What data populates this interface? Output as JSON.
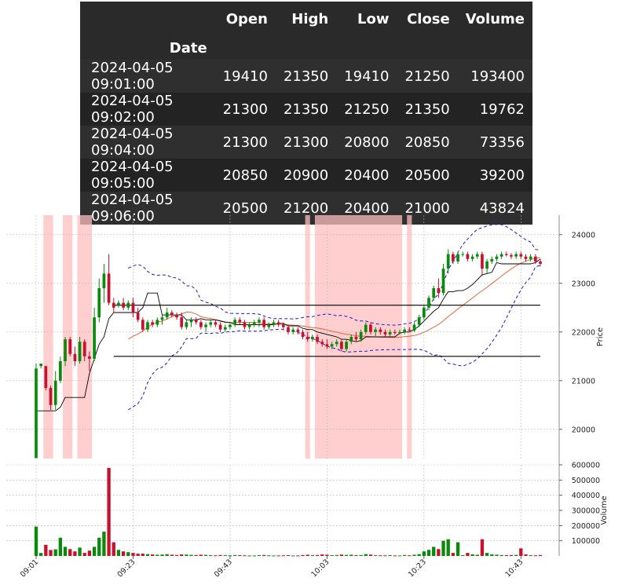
{
  "table": {
    "columns": [
      "Open",
      "High",
      "Low",
      "Close",
      "Volume"
    ],
    "index_name": "Date",
    "rows": [
      {
        "date": "2024-04-05 09:01:00",
        "open": "19410",
        "high": "21350",
        "low": "19410",
        "close": "21250",
        "volume": "193400"
      },
      {
        "date": "2024-04-05 09:02:00",
        "open": "21300",
        "high": "21350",
        "low": "21250",
        "close": "21350",
        "volume": "19762"
      },
      {
        "date": "2024-04-05 09:04:00",
        "open": "21300",
        "high": "21300",
        "low": "20800",
        "close": "20850",
        "volume": "73356"
      },
      {
        "date": "2024-04-05 09:05:00",
        "open": "20850",
        "high": "20900",
        "low": "20400",
        "close": "20500",
        "volume": "39200"
      },
      {
        "date": "2024-04-05 09:06:00",
        "open": "20500",
        "high": "21200",
        "low": "20400",
        "close": "21000",
        "volume": "43824"
      }
    ]
  },
  "chart_data": {
    "type": "candlestick",
    "price_axis": {
      "label": "Price",
      "ticks": [
        20000,
        21000,
        22000,
        23000,
        24000
      ],
      "ylim": [
        19400,
        24400
      ]
    },
    "volume_axis": {
      "label": "Volume",
      "ticks": [
        100000,
        200000,
        300000,
        400000,
        500000,
        600000
      ],
      "ylim": [
        0,
        600000
      ]
    },
    "x_ticks": [
      "09:01",
      "09:23",
      "09:43",
      "10:03",
      "10:23",
      "10:43"
    ],
    "x_tick_index": [
      0,
      20,
      40,
      60,
      80,
      100
    ],
    "grid": true,
    "horizontal_lines": [
      22550,
      21500
    ],
    "shaded_ranges": [
      [
        2,
        3
      ],
      [
        6,
        7
      ],
      [
        9,
        11
      ],
      [
        56,
        56
      ],
      [
        58,
        75
      ],
      [
        77,
        77
      ]
    ],
    "candles": [
      {
        "o": 19410,
        "h": 21350,
        "l": 19410,
        "c": 21250,
        "v": 193400
      },
      {
        "o": 21300,
        "h": 21350,
        "l": 21250,
        "c": 21350,
        "v": 19762
      },
      {
        "o": 21300,
        "h": 21300,
        "l": 20800,
        "c": 20850,
        "v": 73356
      },
      {
        "o": 20850,
        "h": 20900,
        "l": 20400,
        "c": 20500,
        "v": 39200
      },
      {
        "o": 20500,
        "h": 21200,
        "l": 20400,
        "c": 21000,
        "v": 43824
      },
      {
        "o": 21000,
        "h": 21500,
        "l": 20950,
        "c": 21400,
        "v": 120000
      },
      {
        "o": 21400,
        "h": 21900,
        "l": 21300,
        "c": 21850,
        "v": 60000
      },
      {
        "o": 21850,
        "h": 21900,
        "l": 21500,
        "c": 21550,
        "v": 45000
      },
      {
        "o": 21550,
        "h": 21700,
        "l": 21300,
        "c": 21400,
        "v": 30000
      },
      {
        "o": 21400,
        "h": 21900,
        "l": 21350,
        "c": 21800,
        "v": 55000
      },
      {
        "o": 21800,
        "h": 21850,
        "l": 21400,
        "c": 21500,
        "v": 20000
      },
      {
        "o": 21500,
        "h": 21600,
        "l": 21200,
        "c": 21450,
        "v": 35000
      },
      {
        "o": 21450,
        "h": 22500,
        "l": 21400,
        "c": 22300,
        "v": 60000
      },
      {
        "o": 22300,
        "h": 23100,
        "l": 22200,
        "c": 22900,
        "v": 120000
      },
      {
        "o": 22900,
        "h": 23400,
        "l": 22600,
        "c": 23200,
        "v": 160000
      },
      {
        "o": 23200,
        "h": 23600,
        "l": 22550,
        "c": 22600,
        "v": 580000
      },
      {
        "o": 22600,
        "h": 22700,
        "l": 22400,
        "c": 22500,
        "v": 90000
      },
      {
        "o": 22550,
        "h": 22650,
        "l": 22500,
        "c": 22600,
        "v": 40000
      },
      {
        "o": 22600,
        "h": 22700,
        "l": 22450,
        "c": 22500,
        "v": 30000
      },
      {
        "o": 22500,
        "h": 22650,
        "l": 22450,
        "c": 22600,
        "v": 25000
      },
      {
        "o": 22600,
        "h": 22700,
        "l": 22300,
        "c": 22400,
        "v": 20000
      },
      {
        "o": 22400,
        "h": 22500,
        "l": 22200,
        "c": 22250,
        "v": 15000
      },
      {
        "o": 22250,
        "h": 22300,
        "l": 22000,
        "c": 22050,
        "v": 15000
      },
      {
        "o": 22050,
        "h": 22250,
        "l": 22000,
        "c": 22200,
        "v": 12000
      },
      {
        "o": 22200,
        "h": 22250,
        "l": 22100,
        "c": 22150,
        "v": 10000
      },
      {
        "o": 22150,
        "h": 22300,
        "l": 22100,
        "c": 22250,
        "v": 8000
      },
      {
        "o": 22250,
        "h": 22350,
        "l": 22150,
        "c": 22300,
        "v": 9000
      },
      {
        "o": 22300,
        "h": 22500,
        "l": 22250,
        "c": 22400,
        "v": 12000
      },
      {
        "o": 22400,
        "h": 22450,
        "l": 22300,
        "c": 22350,
        "v": 8000
      },
      {
        "o": 22350,
        "h": 22400,
        "l": 22250,
        "c": 22300,
        "v": 6000
      },
      {
        "o": 22300,
        "h": 22400,
        "l": 22050,
        "c": 22100,
        "v": 10000
      },
      {
        "o": 22100,
        "h": 22250,
        "l": 22050,
        "c": 22200,
        "v": 9000
      },
      {
        "o": 22200,
        "h": 22300,
        "l": 22100,
        "c": 22250,
        "v": 7000
      },
      {
        "o": 22250,
        "h": 22300,
        "l": 22150,
        "c": 22200,
        "v": 6000
      },
      {
        "o": 22200,
        "h": 22250,
        "l": 22050,
        "c": 22100,
        "v": 8000
      },
      {
        "o": 22100,
        "h": 22200,
        "l": 22000,
        "c": 22150,
        "v": 7000
      },
      {
        "o": 22150,
        "h": 22250,
        "l": 22100,
        "c": 22200,
        "v": 5000
      },
      {
        "o": 22200,
        "h": 22250,
        "l": 22100,
        "c": 22150,
        "v": 4000
      },
      {
        "o": 22150,
        "h": 22200,
        "l": 22000,
        "c": 22050,
        "v": 6000
      },
      {
        "o": 22050,
        "h": 22150,
        "l": 22000,
        "c": 22100,
        "v": 5000
      },
      {
        "o": 22100,
        "h": 22200,
        "l": 22050,
        "c": 22150,
        "v": 4000
      },
      {
        "o": 22150,
        "h": 22300,
        "l": 22100,
        "c": 22250,
        "v": 6000
      },
      {
        "o": 22250,
        "h": 22300,
        "l": 22150,
        "c": 22200,
        "v": 5000
      },
      {
        "o": 22200,
        "h": 22250,
        "l": 22050,
        "c": 22100,
        "v": 4000
      },
      {
        "o": 22100,
        "h": 22200,
        "l": 22050,
        "c": 22150,
        "v": 3000
      },
      {
        "o": 22150,
        "h": 22250,
        "l": 22100,
        "c": 22200,
        "v": 3000
      },
      {
        "o": 22200,
        "h": 22300,
        "l": 22100,
        "c": 22250,
        "v": 5000
      },
      {
        "o": 22250,
        "h": 22300,
        "l": 22050,
        "c": 22100,
        "v": 6000
      },
      {
        "o": 22100,
        "h": 22200,
        "l": 22050,
        "c": 22150,
        "v": 4000
      },
      {
        "o": 22150,
        "h": 22250,
        "l": 22100,
        "c": 22200,
        "v": 3000
      },
      {
        "o": 22200,
        "h": 22250,
        "l": 22100,
        "c": 22150,
        "v": 3000
      },
      {
        "o": 22150,
        "h": 22200,
        "l": 22050,
        "c": 22100,
        "v": 4000
      },
      {
        "o": 22100,
        "h": 22150,
        "l": 21950,
        "c": 22000,
        "v": 5000
      },
      {
        "o": 22000,
        "h": 22100,
        "l": 21950,
        "c": 22050,
        "v": 3000
      },
      {
        "o": 22050,
        "h": 22100,
        "l": 21950,
        "c": 22000,
        "v": 3000
      },
      {
        "o": 22000,
        "h": 22050,
        "l": 21850,
        "c": 21900,
        "v": 6000
      },
      {
        "o": 21900,
        "h": 22000,
        "l": 21800,
        "c": 21850,
        "v": 8000
      },
      {
        "o": 21850,
        "h": 21950,
        "l": 21800,
        "c": 21900,
        "v": 5000
      },
      {
        "o": 21900,
        "h": 21950,
        "l": 21750,
        "c": 21800,
        "v": 6000
      },
      {
        "o": 21800,
        "h": 21850,
        "l": 21700,
        "c": 21750,
        "v": 10000
      },
      {
        "o": 21750,
        "h": 21850,
        "l": 21650,
        "c": 21700,
        "v": 8000
      },
      {
        "o": 21700,
        "h": 21800,
        "l": 21650,
        "c": 21750,
        "v": 5000
      },
      {
        "o": 21750,
        "h": 21850,
        "l": 21700,
        "c": 21800,
        "v": 6000
      },
      {
        "o": 21800,
        "h": 21850,
        "l": 21600,
        "c": 21650,
        "v": 9000
      },
      {
        "o": 21650,
        "h": 21850,
        "l": 21600,
        "c": 21800,
        "v": 7000
      },
      {
        "o": 21800,
        "h": 21950,
        "l": 21750,
        "c": 21900,
        "v": 8000
      },
      {
        "o": 21900,
        "h": 22000,
        "l": 21800,
        "c": 21850,
        "v": 5000
      },
      {
        "o": 21850,
        "h": 22050,
        "l": 21800,
        "c": 22000,
        "v": 6000
      },
      {
        "o": 22000,
        "h": 22200,
        "l": 21950,
        "c": 22150,
        "v": 12000
      },
      {
        "o": 22150,
        "h": 22200,
        "l": 21950,
        "c": 22000,
        "v": 9000
      },
      {
        "o": 22000,
        "h": 22100,
        "l": 21900,
        "c": 22050,
        "v": 5000
      },
      {
        "o": 22050,
        "h": 22100,
        "l": 21950,
        "c": 22000,
        "v": 4000
      },
      {
        "o": 22000,
        "h": 22050,
        "l": 21900,
        "c": 21950,
        "v": 4000
      },
      {
        "o": 21950,
        "h": 22050,
        "l": 21900,
        "c": 22000,
        "v": 5000
      },
      {
        "o": 22000,
        "h": 22050,
        "l": 21950,
        "c": 21980,
        "v": 3000
      },
      {
        "o": 21980,
        "h": 22050,
        "l": 21950,
        "c": 22000,
        "v": 3000
      },
      {
        "o": 22000,
        "h": 22100,
        "l": 21950,
        "c": 22050,
        "v": 6000
      },
      {
        "o": 22050,
        "h": 22100,
        "l": 22000,
        "c": 22030,
        "v": 4000
      },
      {
        "o": 22030,
        "h": 22200,
        "l": 22000,
        "c": 22150,
        "v": 8000
      },
      {
        "o": 22150,
        "h": 22350,
        "l": 22100,
        "c": 22300,
        "v": 12000
      },
      {
        "o": 22300,
        "h": 22550,
        "l": 22250,
        "c": 22500,
        "v": 30000
      },
      {
        "o": 22500,
        "h": 22750,
        "l": 22450,
        "c": 22700,
        "v": 40000
      },
      {
        "o": 22700,
        "h": 22950,
        "l": 22650,
        "c": 22900,
        "v": 60000
      },
      {
        "o": 22900,
        "h": 23100,
        "l": 22700,
        "c": 22800,
        "v": 45000
      },
      {
        "o": 22800,
        "h": 23400,
        "l": 22750,
        "c": 23300,
        "v": 100000
      },
      {
        "o": 23300,
        "h": 23700,
        "l": 23200,
        "c": 23600,
        "v": 110000
      },
      {
        "o": 23600,
        "h": 23650,
        "l": 23400,
        "c": 23450,
        "v": 20000
      },
      {
        "o": 23450,
        "h": 23650,
        "l": 23400,
        "c": 23600,
        "v": 90000
      },
      {
        "o": 23600,
        "h": 23650,
        "l": 23550,
        "c": 23600,
        "v": 5000
      },
      {
        "o": 23600,
        "h": 23650,
        "l": 23450,
        "c": 23500,
        "v": 20000
      },
      {
        "o": 23500,
        "h": 23600,
        "l": 23450,
        "c": 23550,
        "v": 10000
      },
      {
        "o": 23550,
        "h": 23650,
        "l": 23500,
        "c": 23600,
        "v": 8000
      },
      {
        "o": 23600,
        "h": 23650,
        "l": 23150,
        "c": 23300,
        "v": 110000
      },
      {
        "o": 23300,
        "h": 23500,
        "l": 23200,
        "c": 23450,
        "v": 20000
      },
      {
        "o": 23450,
        "h": 23550,
        "l": 23400,
        "c": 23500,
        "v": 10000
      },
      {
        "o": 23500,
        "h": 23600,
        "l": 23450,
        "c": 23550,
        "v": 8000
      },
      {
        "o": 23550,
        "h": 23650,
        "l": 23500,
        "c": 23600,
        "v": 6000
      },
      {
        "o": 23600,
        "h": 23650,
        "l": 23550,
        "c": 23580,
        "v": 5000
      },
      {
        "o": 23580,
        "h": 23620,
        "l": 23500,
        "c": 23550,
        "v": 6000
      },
      {
        "o": 23550,
        "h": 23650,
        "l": 23500,
        "c": 23600,
        "v": 7000
      },
      {
        "o": 23600,
        "h": 23650,
        "l": 23500,
        "c": 23550,
        "v": 50000
      },
      {
        "o": 23550,
        "h": 23600,
        "l": 23450,
        "c": 23500,
        "v": 10000
      },
      {
        "o": 23500,
        "h": 23600,
        "l": 23450,
        "c": 23550,
        "v": 5000
      },
      {
        "o": 23550,
        "h": 23600,
        "l": 23400,
        "c": 23450,
        "v": 4000
      },
      {
        "o": 23450,
        "h": 23500,
        "l": 23350,
        "c": 23400,
        "v": 6000
      }
    ],
    "colors": {
      "up": "#0a8a0a",
      "down": "#c8102e",
      "shade": "#ffbdbd",
      "ma": "#e4683a",
      "band": "#1a1adc",
      "channel": "#000000",
      "grid": "#b9b9b9"
    }
  }
}
